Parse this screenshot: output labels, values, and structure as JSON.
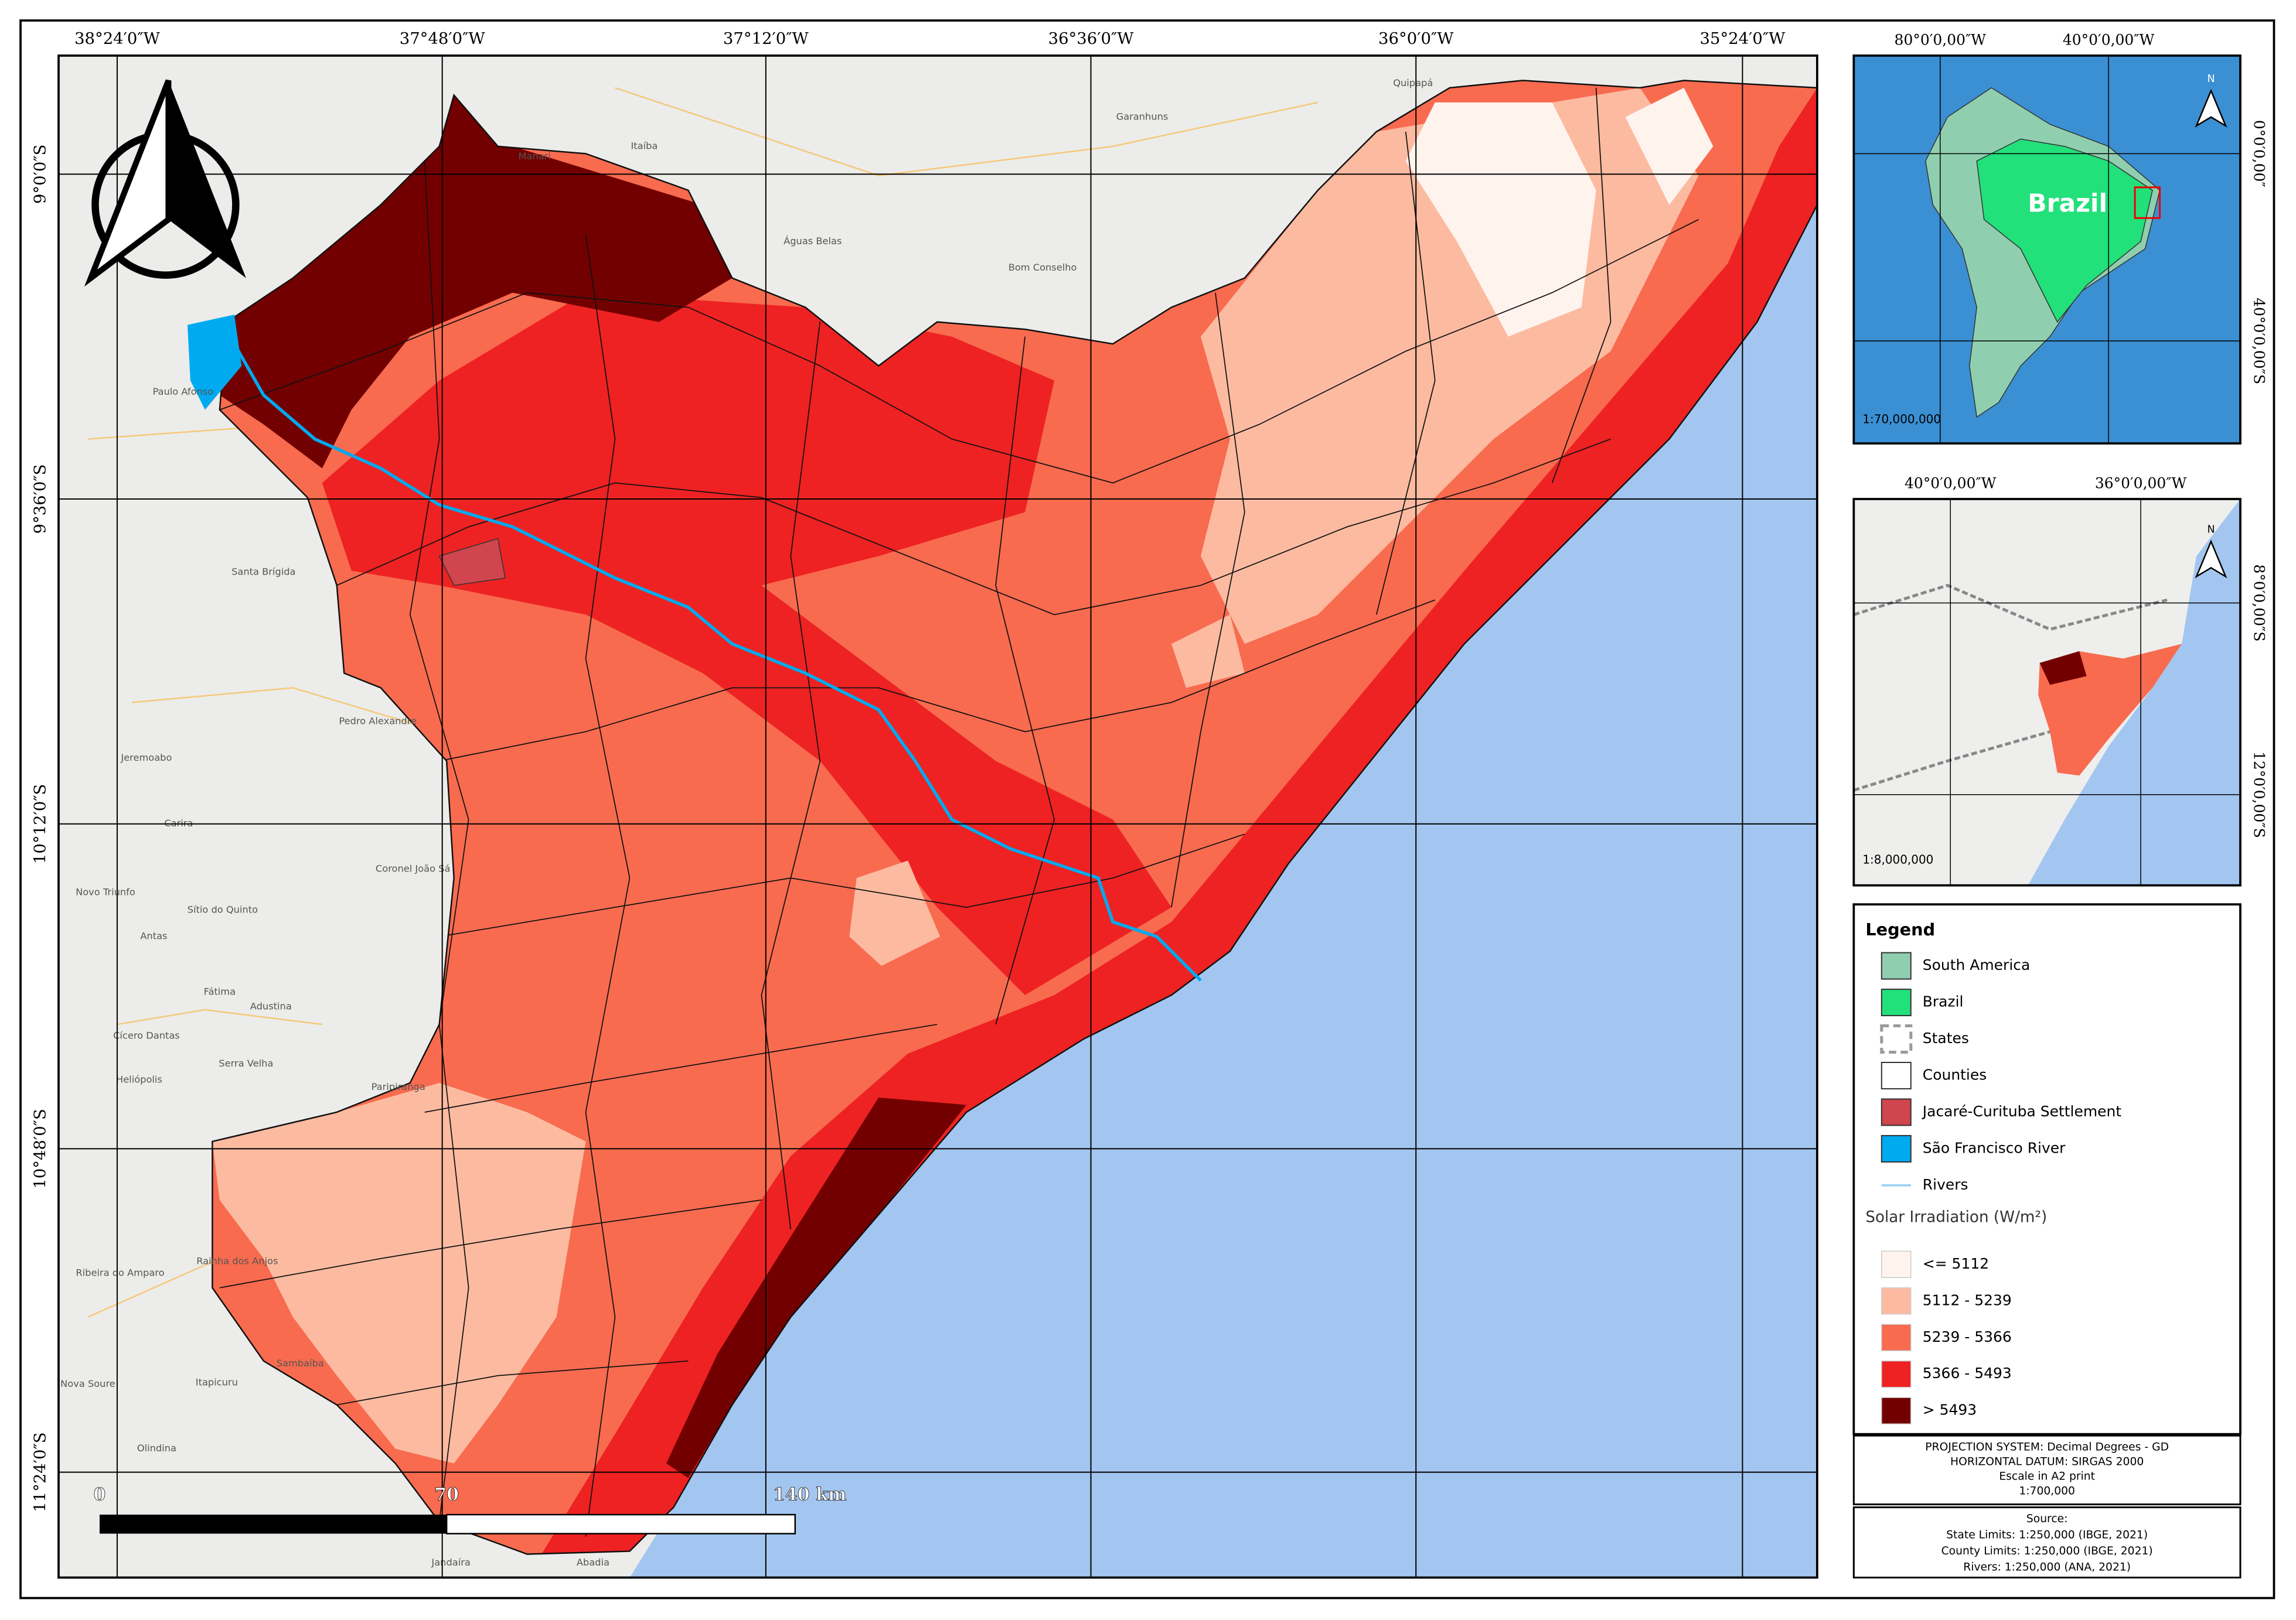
{
  "main_map": {
    "top_coords": [
      "38°24′0″W",
      "37°48′0″W",
      "37°12′0″W",
      "36°36′0″W",
      "36°0′0″W",
      "35°24′0″W"
    ],
    "left_coords": [
      "9°0′0″S",
      "9°36′0″S",
      "10°12′0″S",
      "10°48′0″S",
      "11°24′0″S"
    ],
    "scale_bar": [
      "0",
      "70",
      "140 km"
    ],
    "places": [
      "Garanhuns",
      "Águas Belas",
      "Bom Conselho",
      "Paulo Afonso",
      "Pedro Alexandre",
      "Jeremoabo",
      "Coronel João Sá",
      "Sítio do Quinto",
      "Antas",
      "Cícero Dantas",
      "Fátima",
      "Heliópolis",
      "Ribeira do Amparo",
      "Olindina",
      "Itapicuru",
      "Sambaíba",
      "Jandaíra",
      "Abadia",
      "Carira",
      "Novo Triunfo",
      "Santa Brígida",
      "Adustina",
      "Serra Velha",
      "Paripiranga",
      "Rainha dos Anjos",
      "Nova Soure",
      "Quipapá",
      "Itaíba",
      "Manari"
    ]
  },
  "inset_south_america": {
    "top_coords": [
      "80°0′0,00″W",
      "40°0′0,00″W"
    ],
    "right_coords": [
      "0°0′0,00″",
      "40°0′0,00″S"
    ],
    "country_label": "Brazil",
    "scale": "1:70,000,000",
    "north": "N"
  },
  "inset_region": {
    "top_coords": [
      "40°0′0,00″W",
      "36°0′0,00″W"
    ],
    "right_coords": [
      "8°0′0,00″S",
      "12°0′0,00″S"
    ],
    "scale": "1:8,000,000",
    "north": "N"
  },
  "legend": {
    "title": "Legend",
    "items": [
      {
        "label": "South America",
        "color": "#8fcfb0"
      },
      {
        "label": "Brazil",
        "color": "#22e07a"
      },
      {
        "label": "States",
        "color": "#9a9a9a"
      },
      {
        "label": "Counties",
        "color": "#ffffff"
      },
      {
        "label": "Jacaré-Curituba Settlement",
        "color": "#d0454e"
      },
      {
        "label": "São Francisco River",
        "color": "#00aaf0"
      },
      {
        "label": "Rivers",
        "color": "#9ad3f0"
      }
    ],
    "irradiation_title": "Solar Irradiation (W/m²)",
    "classes": [
      {
        "label": "<= 5112",
        "color": "#fff3ee"
      },
      {
        "label": "5112 - 5239",
        "color": "#fcbba1"
      },
      {
        "label": "5239 - 5366",
        "color": "#f86b4f"
      },
      {
        "label": "5366 - 5493",
        "color": "#ee2222"
      },
      {
        "label": "> 5493",
        "color": "#730000"
      }
    ]
  },
  "projection": [
    "PROJECTION SYSTEM: Decimal Degrees - GD",
    "HORIZONTAL DATUM: SIRGAS 2000",
    "Escale in A2 print",
    "1:700,000"
  ],
  "source": [
    "Source:",
    "State Limits: 1:250,000 (IBGE, 2021)",
    "County Limits: 1:250,000 (IBGE, 2021)",
    "Rivers: 1:250,000 (ANA, 2021)"
  ]
}
